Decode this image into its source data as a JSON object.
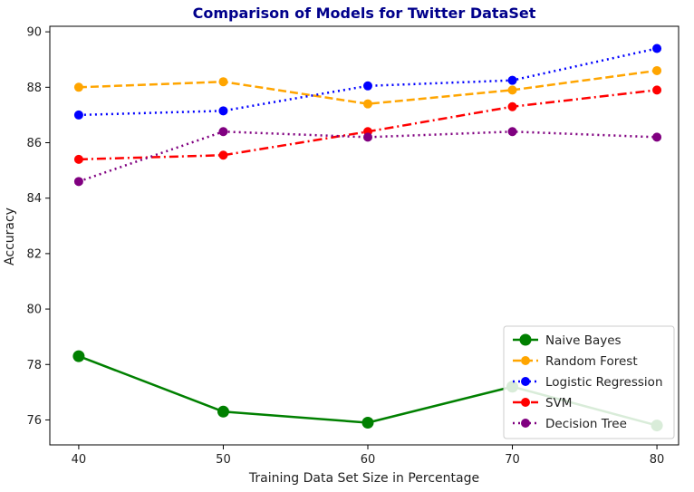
{
  "chart_data": {
    "type": "line",
    "title": "Comparison of Models for Twitter DataSet",
    "xlabel": "Training Data Set Size in Percentage",
    "ylabel": "Accuracy",
    "x": [
      40,
      50,
      60,
      70,
      80
    ],
    "xticks": [
      "40",
      "50",
      "60",
      "70",
      "80"
    ],
    "yticks": [
      "76",
      "78",
      "80",
      "82",
      "84",
      "86",
      "88",
      "90"
    ],
    "xlim": [
      38,
      81.5
    ],
    "ylim": [
      75.1,
      90.2
    ],
    "grid": false,
    "legend_position": "lower-right",
    "series": [
      {
        "name": "Naive Bayes",
        "values": [
          78.3,
          76.3,
          75.9,
          77.2,
          75.8
        ],
        "color": "#008000",
        "line_style": "solid",
        "marker_size": "large"
      },
      {
        "name": "Random Forest",
        "values": [
          88.0,
          88.2,
          87.4,
          87.9,
          88.6
        ],
        "color": "#ffa500",
        "line_style": "dashed",
        "marker_size": "normal"
      },
      {
        "name": "Logistic Regression",
        "values": [
          87.0,
          87.15,
          88.05,
          88.25,
          89.4
        ],
        "color": "#0000ff",
        "line_style": "dotted",
        "marker_size": "normal"
      },
      {
        "name": "SVM",
        "values": [
          85.4,
          85.55,
          86.4,
          87.3,
          87.9
        ],
        "color": "#ff0000",
        "line_style": "dashdot",
        "marker_size": "normal"
      },
      {
        "name": "Decision Tree",
        "values": [
          84.6,
          86.4,
          86.2,
          86.4,
          86.2
        ],
        "color": "#800080",
        "line_style": "dotted",
        "marker_size": "normal"
      }
    ]
  }
}
